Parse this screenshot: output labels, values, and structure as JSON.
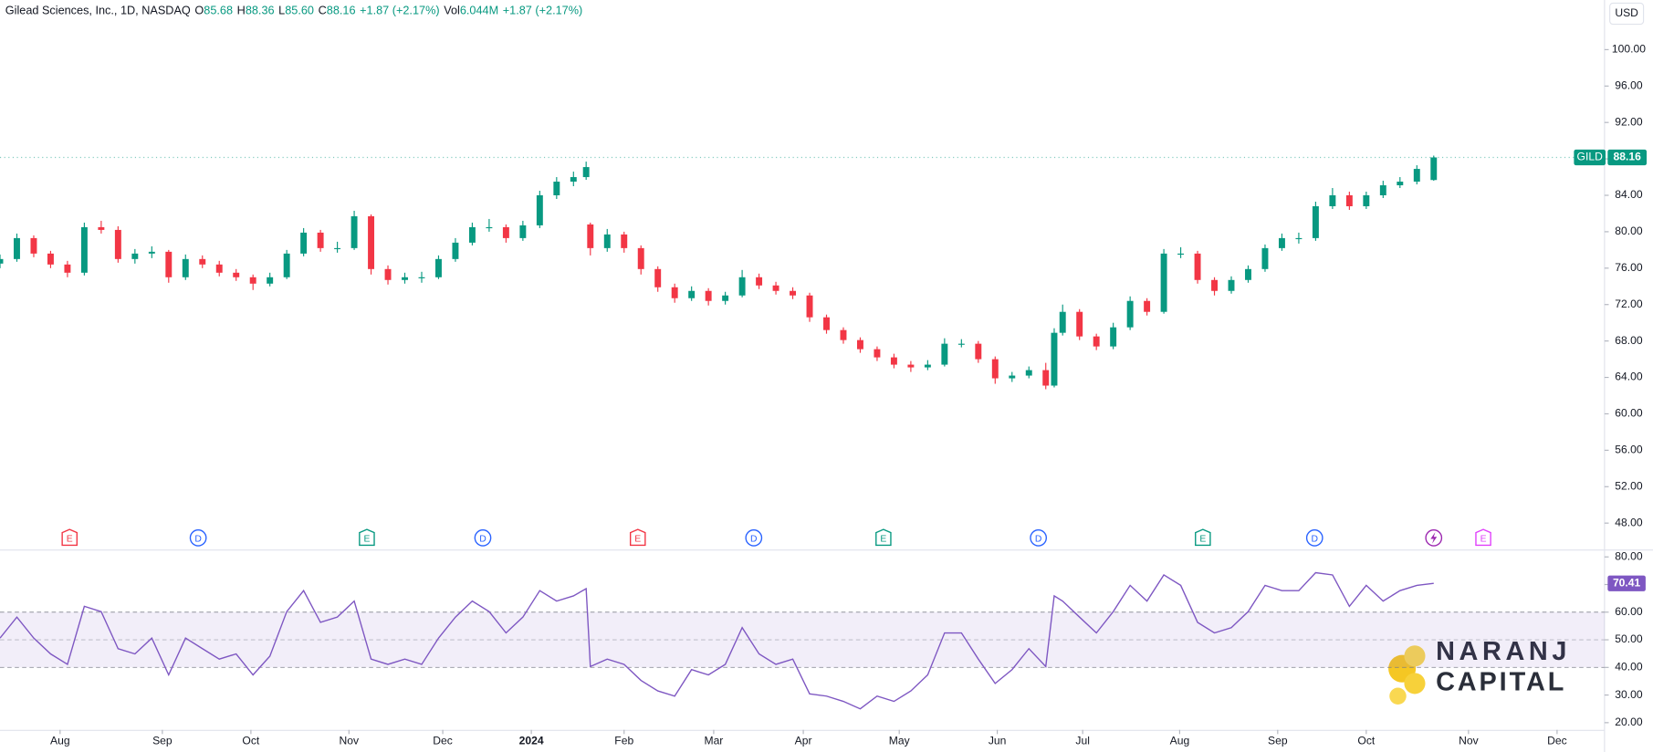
{
  "header": {
    "name": "Gilead Sciences, Inc., 1D, NASDAQ",
    "items": [
      {
        "label": "O",
        "value": "85.68"
      },
      {
        "label": "H",
        "value": "88.36"
      },
      {
        "label": "L",
        "value": "85.60"
      },
      {
        "label": "C",
        "value": "88.16"
      },
      {
        "label": "",
        "value": "+1.87 (+2.17%)"
      },
      {
        "label": "Vol",
        "value": "6.044M"
      },
      {
        "label": "",
        "value": "+1.87 (+2.17%)"
      }
    ],
    "currency": "USD"
  },
  "watermark": [
    "NARANJ",
    "CAPITAL"
  ],
  "chart_data": [
    {
      "type": "candlestick",
      "symbol": "GILD",
      "up_color": "#089981",
      "down_color": "#f23645",
      "x": [
        0,
        4,
        8,
        12,
        16,
        20,
        24,
        28,
        32,
        36,
        40,
        44,
        48,
        52,
        56,
        60,
        64,
        68,
        72,
        76,
        80,
        84,
        88,
        92,
        96,
        100,
        104,
        108,
        112,
        116,
        120,
        124,
        128,
        132,
        136,
        139,
        140,
        144,
        148,
        152,
        156,
        160,
        164,
        168,
        172,
        176,
        180,
        184,
        188,
        192,
        196,
        200,
        204,
        208,
        212,
        216,
        220,
        224,
        228,
        232,
        236,
        240,
        244,
        248,
        250,
        252,
        256,
        260,
        264,
        268,
        272,
        276,
        280,
        284,
        288,
        292,
        296,
        300,
        304,
        308,
        312,
        316,
        320,
        324,
        328,
        332,
        336,
        340
      ],
      "open": [
        76.5,
        77.0,
        79.3,
        77.6,
        76.4,
        75.5,
        80.5,
        80.2,
        77.0,
        77.6,
        77.8,
        75.0,
        77.0,
        76.4,
        75.5,
        75.0,
        74.3,
        75.0,
        77.6,
        79.9,
        78.2,
        78.2,
        81.7,
        75.9,
        74.7,
        75.0,
        75.0,
        77.0,
        78.8,
        80.5,
        80.5,
        79.3,
        80.7,
        84.0,
        85.5,
        86.0,
        80.8,
        78.2,
        79.7,
        78.2,
        75.9,
        73.9,
        72.7,
        73.5,
        72.4,
        73.0,
        75.0,
        74.1,
        73.5,
        73.0,
        70.6,
        69.2,
        68.1,
        67.1,
        66.2,
        65.4,
        65.1,
        65.4,
        67.7,
        67.7,
        66.0,
        63.9,
        64.2,
        64.8,
        63.1,
        68.9,
        71.2,
        68.5,
        67.4,
        69.5,
        72.4,
        71.2,
        77.6,
        77.6,
        74.7,
        73.5,
        74.7,
        75.9,
        78.2,
        79.3,
        79.3,
        82.8,
        84.0,
        82.8,
        84.0,
        85.1,
        85.5,
        85.68
      ],
      "high": [
        77.5,
        79.8,
        79.6,
        77.9,
        76.8,
        81.0,
        81.2,
        80.6,
        78.1,
        78.4,
        78.0,
        77.5,
        77.4,
        76.8,
        75.9,
        75.3,
        75.5,
        78.0,
        80.4,
        80.2,
        78.9,
        82.3,
        81.9,
        76.3,
        75.5,
        75.6,
        77.4,
        79.3,
        81.0,
        81.4,
        80.8,
        81.2,
        84.5,
        86.0,
        86.6,
        87.7,
        81.0,
        80.3,
        80.0,
        78.5,
        76.2,
        74.3,
        74.0,
        73.8,
        73.4,
        75.8,
        75.4,
        74.5,
        73.9,
        73.3,
        70.9,
        69.5,
        68.4,
        67.4,
        66.6,
        65.8,
        65.9,
        68.3,
        68.2,
        68.0,
        66.3,
        64.6,
        65.2,
        65.6,
        69.4,
        72.0,
        71.5,
        68.8,
        70.0,
        72.9,
        72.7,
        78.1,
        78.3,
        77.9,
        75.0,
        75.1,
        76.3,
        78.6,
        79.8,
        79.9,
        83.3,
        84.8,
        84.4,
        84.4,
        85.6,
        86.0,
        87.3,
        88.36
      ],
      "low": [
        76.0,
        76.7,
        77.2,
        76.0,
        75.0,
        75.2,
        79.8,
        76.6,
        76.5,
        77.1,
        74.4,
        74.7,
        76.0,
        75.1,
        74.6,
        73.6,
        74.0,
        74.8,
        77.3,
        77.8,
        77.7,
        78.0,
        75.3,
        74.2,
        74.3,
        74.4,
        74.8,
        76.7,
        78.5,
        80.0,
        78.8,
        79.0,
        80.4,
        83.6,
        85.0,
        85.7,
        77.4,
        77.8,
        77.7,
        75.3,
        73.4,
        72.2,
        72.4,
        71.9,
        72.0,
        72.8,
        73.7,
        73.1,
        72.6,
        70.1,
        68.8,
        67.7,
        66.7,
        65.8,
        65.0,
        64.6,
        64.8,
        65.2,
        67.3,
        65.6,
        63.3,
        63.5,
        63.9,
        62.7,
        62.9,
        68.6,
        68.1,
        67.0,
        67.1,
        69.2,
        70.8,
        71.0,
        77.1,
        74.3,
        73.0,
        73.2,
        74.4,
        75.6,
        77.9,
        78.7,
        79.0,
        82.5,
        82.4,
        82.5,
        83.7,
        84.8,
        85.2,
        85.6
      ],
      "close": [
        77.0,
        79.3,
        77.6,
        76.4,
        75.5,
        80.5,
        80.2,
        77.0,
        77.6,
        77.8,
        75.0,
        77.0,
        76.4,
        75.5,
        75.0,
        74.3,
        75.0,
        77.6,
        79.9,
        78.2,
        78.2,
        81.7,
        75.9,
        74.7,
        75.0,
        75.0,
        77.0,
        78.8,
        80.5,
        80.5,
        79.3,
        80.7,
        84.0,
        85.5,
        86.0,
        87.1,
        78.2,
        79.7,
        78.2,
        75.9,
        73.9,
        72.7,
        73.5,
        72.4,
        73.0,
        75.0,
        74.1,
        73.5,
        73.0,
        70.6,
        69.2,
        68.1,
        67.1,
        66.2,
        65.4,
        65.1,
        65.4,
        67.7,
        67.7,
        66.0,
        63.9,
        64.2,
        64.8,
        63.1,
        68.9,
        71.2,
        68.5,
        67.4,
        69.5,
        72.4,
        71.2,
        77.6,
        77.6,
        74.7,
        73.5,
        74.7,
        75.9,
        78.2,
        79.3,
        79.3,
        82.8,
        84.0,
        82.8,
        84.0,
        85.1,
        85.5,
        86.9,
        88.16
      ],
      "xlim": [
        0,
        380.5
      ],
      "ylim": [
        45.1,
        105.45
      ],
      "yticks": [
        {
          "value": 48,
          "label": "48.00"
        },
        {
          "value": 52,
          "label": "52.00"
        },
        {
          "value": 56,
          "label": "56.00"
        },
        {
          "value": 60,
          "label": "60.00"
        },
        {
          "value": 64,
          "label": "64.00"
        },
        {
          "value": 68,
          "label": "68.00"
        },
        {
          "value": 72,
          "label": "72.00"
        },
        {
          "value": 76,
          "label": "76.00"
        },
        {
          "value": 80,
          "label": "80.00"
        },
        {
          "value": 84,
          "label": "84.00"
        },
        {
          "value": 88,
          "label": "88.00"
        },
        {
          "value": 92,
          "label": "92.00"
        },
        {
          "value": 96,
          "label": "96.00"
        },
        {
          "value": 100,
          "label": "100.00"
        }
      ],
      "events": [
        {
          "label": "E",
          "x": 16.5,
          "color": "#f23645"
        },
        {
          "label": "D",
          "x": 47,
          "color": "#2962ff"
        },
        {
          "label": "E",
          "x": 87,
          "color": "#089981"
        },
        {
          "label": "D",
          "x": 114.5,
          "color": "#2962ff"
        },
        {
          "label": "E",
          "x": 151.25,
          "color": "#f23645"
        },
        {
          "label": "D",
          "x": 178.75,
          "color": "#2962ff"
        },
        {
          "label": "E",
          "x": 209.5,
          "color": "#089981"
        },
        {
          "label": "D",
          "x": 246.25,
          "color": "#2962ff"
        },
        {
          "label": "E",
          "x": 285.25,
          "color": "#089981"
        },
        {
          "label": "D",
          "x": 311.75,
          "color": "#2962ff"
        },
        {
          "label": "E",
          "x": 351.75,
          "color": "#e040fb"
        }
      ]
    },
    {
      "type": "line",
      "color": "#7e57c2",
      "x": [
        0,
        4,
        8,
        12,
        16,
        20,
        24,
        28,
        32,
        36,
        40,
        44,
        48,
        52,
        56,
        60,
        64,
        68,
        72,
        76,
        80,
        84,
        88,
        92,
        96,
        100,
        104,
        108,
        112,
        116,
        120,
        124,
        128,
        132,
        136,
        139,
        140,
        144,
        148,
        152,
        156,
        160,
        164,
        168,
        172,
        176,
        180,
        184,
        188,
        192,
        196,
        200,
        204,
        208,
        212,
        216,
        220,
        224,
        228,
        232,
        236,
        240,
        244,
        248,
        250,
        252,
        256,
        260,
        264,
        268,
        272,
        276,
        280,
        284,
        288,
        292,
        296,
        300,
        304,
        308,
        312,
        316,
        320,
        324,
        328,
        332,
        336,
        340
      ],
      "values": [
        50.6,
        58.2,
        50.6,
        44.9,
        41.1,
        62.1,
        60.2,
        46.8,
        44.9,
        50.6,
        37.3,
        50.6,
        46.8,
        43.0,
        44.9,
        37.3,
        44.1,
        60.2,
        67.8,
        56.3,
        58.2,
        64.0,
        43.0,
        41.1,
        43.0,
        41.1,
        50.6,
        58.2,
        64.0,
        60.2,
        52.5,
        58.2,
        67.8,
        64.0,
        65.9,
        68.5,
        40.3,
        43.0,
        41.1,
        35.3,
        31.5,
        29.6,
        39.2,
        37.3,
        41.1,
        54.4,
        44.9,
        41.1,
        43.0,
        30.4,
        29.6,
        27.7,
        25.0,
        29.6,
        27.7,
        31.5,
        37.3,
        52.5,
        52.5,
        43.0,
        34.2,
        39.2,
        46.8,
        40.3,
        65.9,
        64.0,
        58.2,
        52.5,
        60.2,
        69.7,
        64.0,
        73.5,
        69.7,
        56.3,
        52.5,
        54.4,
        60.2,
        69.7,
        67.8,
        67.8,
        74.3,
        73.5,
        62.1,
        69.7,
        64.0,
        67.8,
        69.7,
        70.41
      ],
      "levels": [
        40,
        50,
        60
      ],
      "xlim": [
        0,
        380.5
      ],
      "ylim": [
        17.4,
        82.3
      ],
      "yticks": [
        {
          "value": 20,
          "label": "20.00"
        },
        {
          "value": 30,
          "label": "30.00"
        },
        {
          "value": 40,
          "label": "40.00"
        },
        {
          "value": 50,
          "label": "50.00"
        },
        {
          "value": 60,
          "label": "60.00"
        },
        {
          "value": 70,
          "label": "70.00"
        },
        {
          "value": 80,
          "label": "80.00"
        }
      ],
      "xticks": [
        {
          "value": 14.25,
          "label": "Aug"
        },
        {
          "value": 38.5,
          "label": "Sep"
        },
        {
          "value": 59.5,
          "label": "Oct"
        },
        {
          "value": 82.75,
          "label": "Nov"
        },
        {
          "value": 105,
          "label": "Dec"
        },
        {
          "value": 126,
          "label": "2024"
        },
        {
          "value": 148,
          "label": "Feb"
        },
        {
          "value": 169.25,
          "label": "Mar"
        },
        {
          "value": 190.5,
          "label": "Apr"
        },
        {
          "value": 213.25,
          "label": "May"
        },
        {
          "value": 236.5,
          "label": "Jun"
        },
        {
          "value": 256.75,
          "label": "Jul"
        },
        {
          "value": 279.75,
          "label": "Aug"
        },
        {
          "value": 303,
          "label": "Sep"
        },
        {
          "value": 324,
          "label": "Oct"
        },
        {
          "value": 348.25,
          "label": "Nov"
        },
        {
          "value": 369.25,
          "label": "Dec"
        }
      ]
    }
  ]
}
